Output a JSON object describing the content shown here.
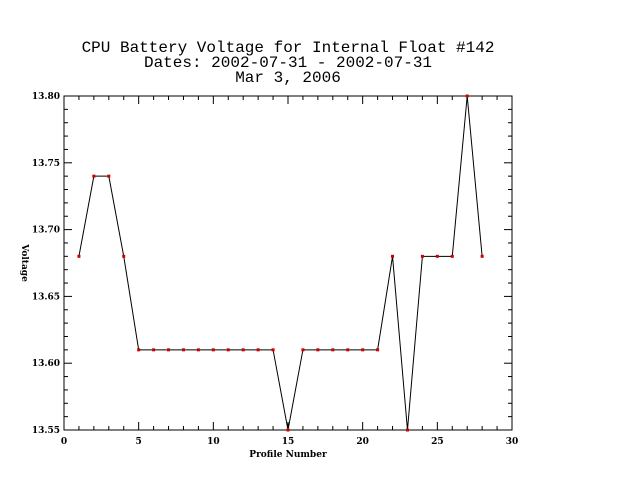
{
  "chart_data": {
    "type": "line",
    "title_lines": [
      "CPU Battery Voltage for Internal Float #142",
      "Dates:  2002-07-31 -  2002-07-31",
      "Mar  3, 2006"
    ],
    "xlabel": "Profile Number",
    "ylabel": "Voltage",
    "xlim": [
      0,
      30
    ],
    "ylim": [
      13.55,
      13.8
    ],
    "x_ticks": [
      0,
      5,
      10,
      15,
      20,
      25,
      30
    ],
    "x_tick_labels": [
      "0",
      "5",
      "10",
      "15",
      "20",
      "25",
      "30"
    ],
    "y_ticks": [
      13.55,
      13.6,
      13.65,
      13.7,
      13.75,
      13.8
    ],
    "y_tick_labels": [
      "13.55",
      "13.60",
      "13.65",
      "13.70",
      "13.75",
      "13.80"
    ],
    "grid": false,
    "line_color": "#000000",
    "marker_color": "#cc0000",
    "series": [
      {
        "x": [
          1,
          2,
          3,
          4,
          5,
          6,
          7,
          8,
          9,
          10,
          11,
          12,
          13,
          14,
          15,
          16,
          17,
          18,
          19,
          20,
          21,
          22,
          23,
          24,
          25,
          26,
          27,
          28
        ],
        "values": [
          13.68,
          13.74,
          13.74,
          13.68,
          13.61,
          13.61,
          13.61,
          13.61,
          13.61,
          13.61,
          13.61,
          13.61,
          13.61,
          13.61,
          13.55,
          13.61,
          13.61,
          13.61,
          13.61,
          13.61,
          13.61,
          13.68,
          13.55,
          13.68,
          13.68,
          13.68,
          13.8,
          13.68
        ]
      }
    ]
  }
}
